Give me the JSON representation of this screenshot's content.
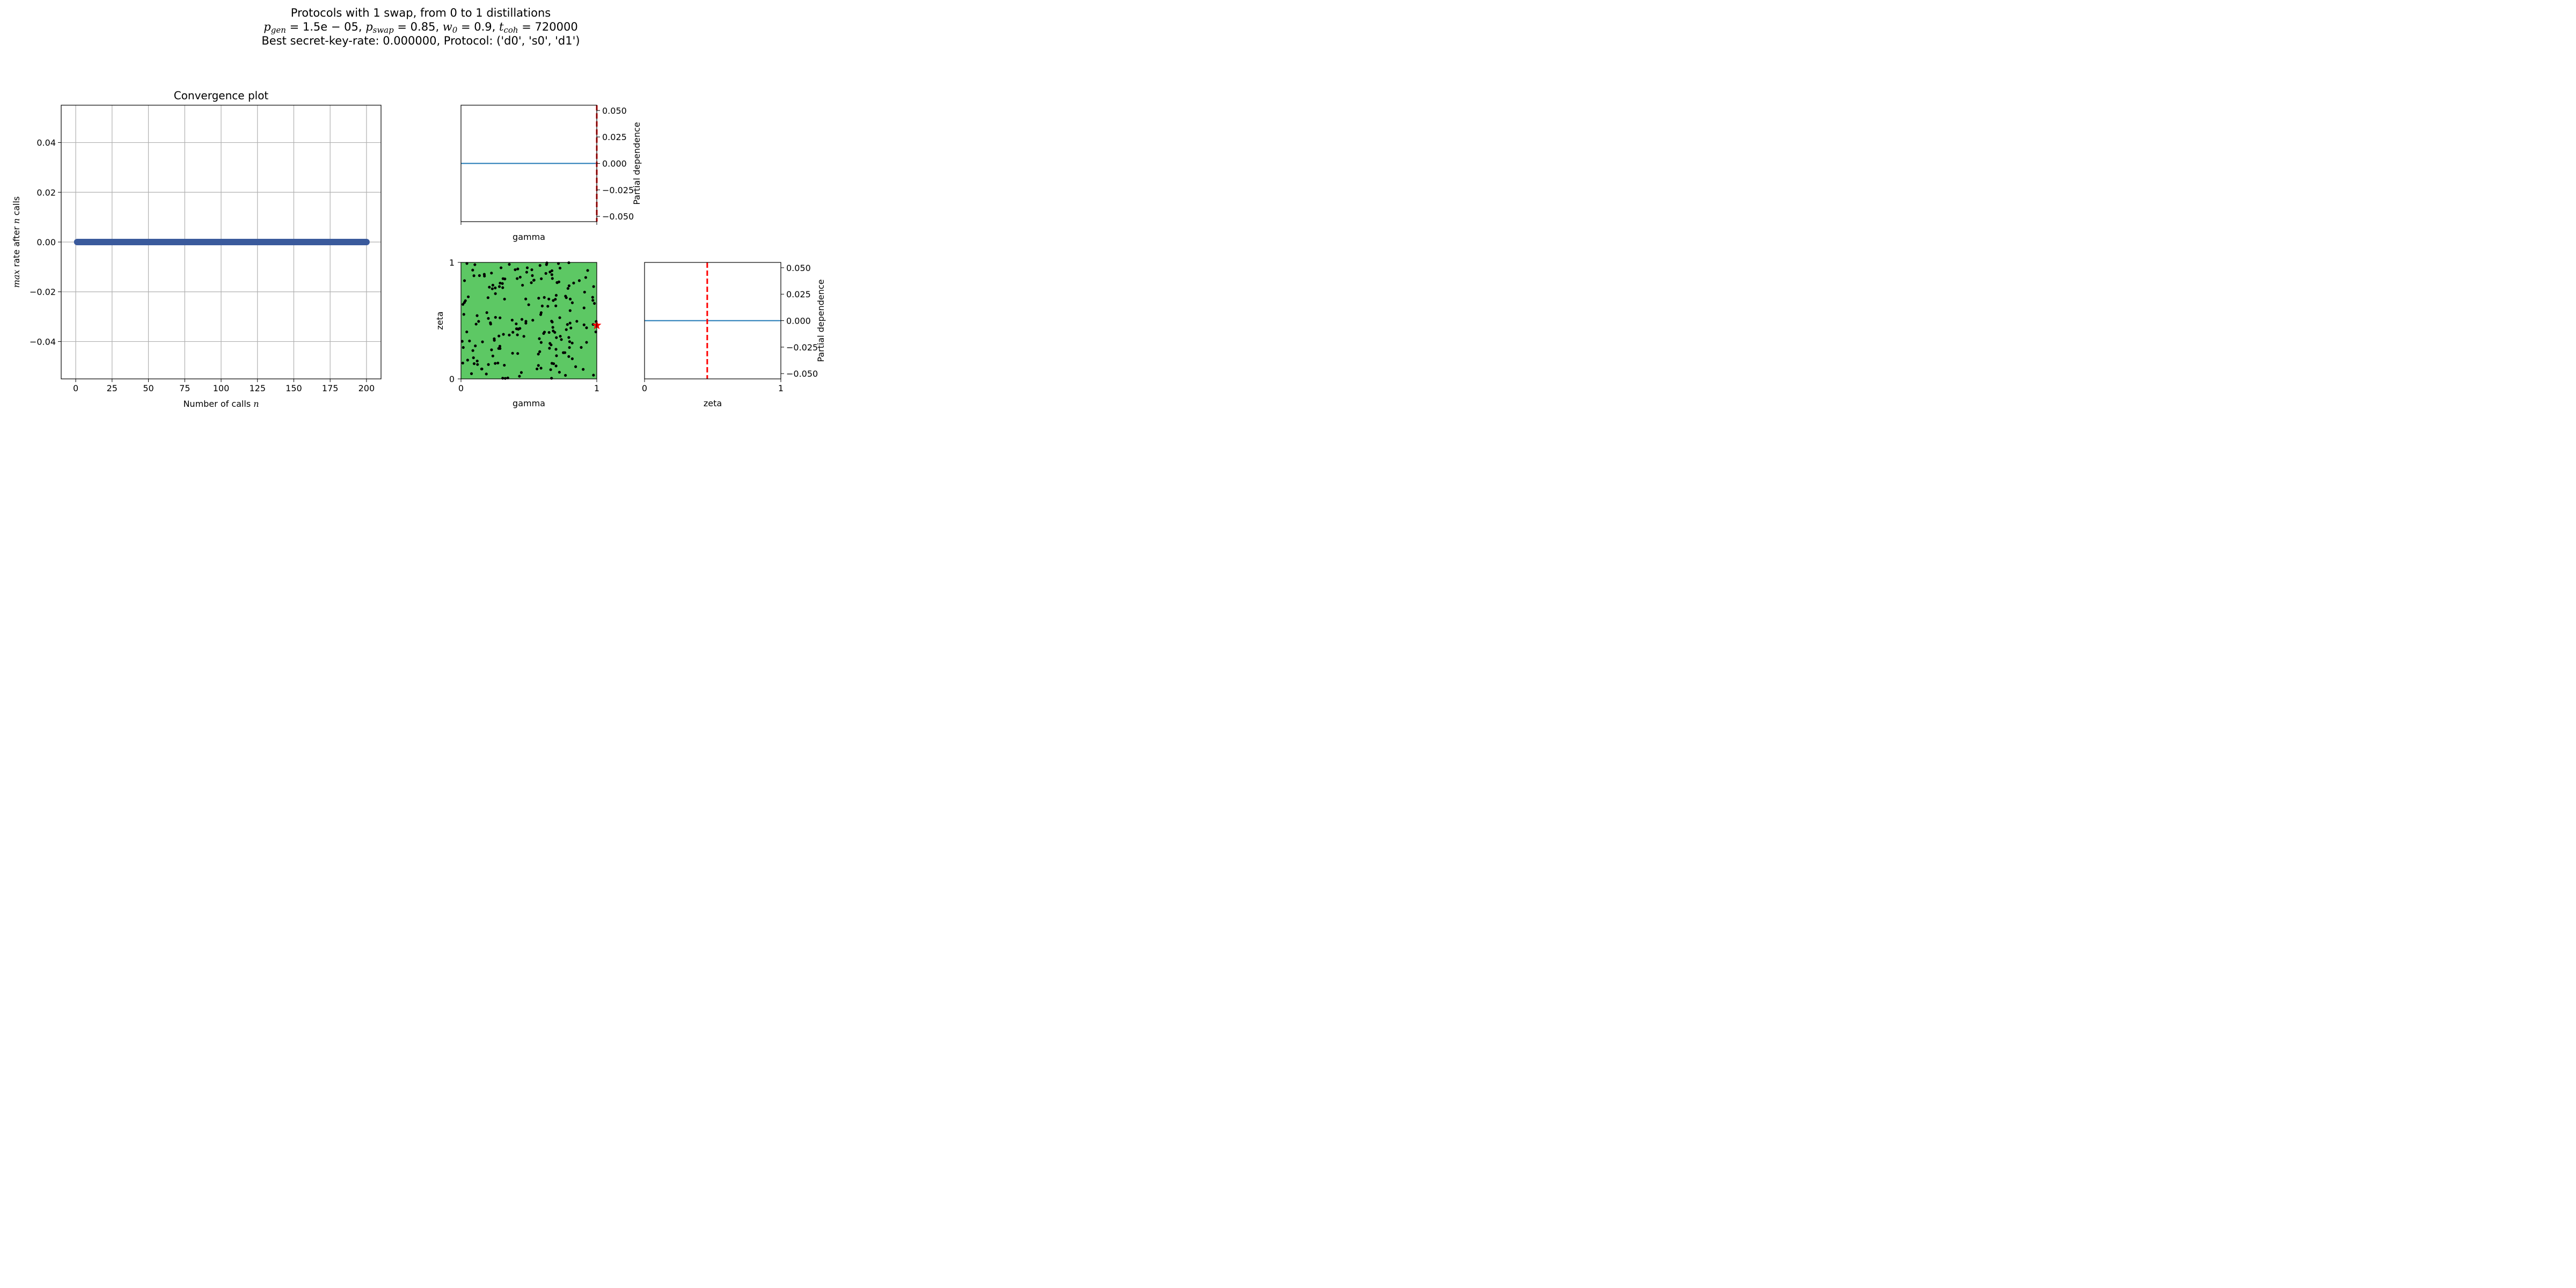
{
  "suptitle": {
    "line1": "Protocols with 1 swap, from 0 to 1 distillations",
    "line2_params": [
      {
        "sym": "p",
        "sub": "gen",
        "val": "= 1.5e − 05,"
      },
      {
        "sym": "p",
        "sub": "swap",
        "val": "= 0.85,"
      },
      {
        "sym": "w",
        "sub": "0",
        "val": "= 0.9,"
      },
      {
        "sym": "t",
        "sub": "coh",
        "val": "= 720000"
      }
    ],
    "line3": "Best secret-key-rate: 0.000000, Protocol: ('d0', 's0', 'd1')"
  },
  "colors": {
    "convergence": "#3a5a9c",
    "pd_line": "#1f77b4",
    "marker_line": "#ff0000",
    "scatter_bg": "#5dc864",
    "scatter_points": "#000000",
    "best_star": "#ff0000",
    "grid": "#b0b0b0"
  },
  "chart_data": [
    {
      "type": "line",
      "title": "Convergence plot",
      "xlabel": "Number of calls n",
      "ylabel": "max rate after n calls",
      "xlim": [
        -10,
        210
      ],
      "ylim": [
        -0.055,
        0.055
      ],
      "xticks": [
        0,
        25,
        50,
        75,
        100,
        125,
        150,
        175,
        200
      ],
      "yticks": [
        -0.04,
        -0.02,
        0.0,
        0.02,
        0.04
      ],
      "ytick_labels": [
        "−0.04",
        "−0.02",
        "0.00",
        "0.02",
        "0.04"
      ],
      "grid": true,
      "x_range": [
        1,
        200
      ],
      "y_constant": 0.0
    },
    {
      "type": "line",
      "title": "",
      "xlabel": "gamma",
      "ylabel": "Partial dependence",
      "xlim": [
        0,
        1
      ],
      "ylim": [
        -0.055,
        0.055
      ],
      "yticks": [
        -0.05,
        -0.025,
        0.0,
        0.025,
        0.05
      ],
      "ytick_labels": [
        "−0.050",
        "−0.025",
        "0.000",
        "0.025",
        "0.050"
      ],
      "series": [
        {
          "x": [
            0,
            1
          ],
          "y": [
            0,
            0
          ]
        }
      ],
      "best_value_line_x": 1.0
    },
    {
      "type": "scatter",
      "title": "",
      "xlabel": "gamma",
      "ylabel": "zeta",
      "xlim": [
        0,
        1
      ],
      "ylim": [
        0,
        1
      ],
      "xticks": [
        0,
        1
      ],
      "xtick_labels": [
        "0",
        "1"
      ],
      "yticks": [
        0,
        1
      ],
      "ytick_labels": [
        "0",
        "1"
      ],
      "n_points": 200,
      "best_point": {
        "gamma": 1.0,
        "zeta": 0.46
      }
    },
    {
      "type": "line",
      "title": "",
      "xlabel": "zeta",
      "ylabel": "Partial dependence",
      "xlim": [
        0,
        1
      ],
      "ylim": [
        -0.055,
        0.055
      ],
      "xticks": [
        0,
        1
      ],
      "xtick_labels": [
        "0",
        "1"
      ],
      "yticks": [
        -0.05,
        -0.025,
        0.0,
        0.025,
        0.05
      ],
      "ytick_labels": [
        "−0.050",
        "−0.025",
        "0.000",
        "0.025",
        "0.050"
      ],
      "series": [
        {
          "x": [
            0,
            1
          ],
          "y": [
            0,
            0
          ]
        }
      ],
      "best_value_line_x": 0.46
    }
  ]
}
